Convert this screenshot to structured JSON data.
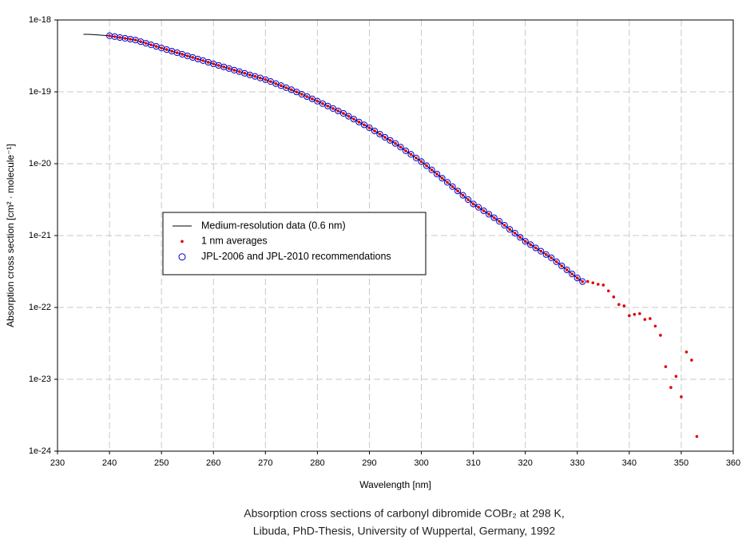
{
  "chart_data": {
    "type": "scatter",
    "ylabel": "Absorption cross section [cm² · molecule⁻¹]",
    "xlabel": "Wavelength [nm]",
    "caption": [
      "Absorption cross sections of carbonyl dibromide COBr₂ at 298 K,",
      "Libuda, PhD-Thesis, University of Wuppertal, Germany, 1992"
    ],
    "xlim": [
      230,
      360
    ],
    "xticks": [
      230,
      240,
      250,
      260,
      270,
      280,
      290,
      300,
      310,
      320,
      330,
      340,
      350,
      360
    ],
    "ylim": [
      1e-24,
      1e-18
    ],
    "yticks": [
      1e-24,
      1e-23,
      1e-22,
      1e-21,
      1e-20,
      1e-19,
      1e-18
    ],
    "log_y": true,
    "grid": true,
    "legend": "center-left",
    "series": [
      {
        "name": "Medium-resolution data (0.6 nm)",
        "marker": "line",
        "color": "#000000",
        "x": [
          235,
          236,
          237,
          238,
          239,
          240,
          241,
          242,
          243,
          244,
          245,
          246,
          247,
          248,
          249,
          250,
          251,
          252,
          253,
          254,
          255,
          256,
          257,
          258,
          259,
          260,
          261,
          262,
          263,
          264,
          265,
          266,
          267,
          268,
          269,
          270,
          271,
          272,
          273,
          274,
          275,
          276,
          277,
          278,
          279,
          280,
          281,
          282,
          283,
          284,
          285,
          286,
          287,
          288,
          289,
          290,
          291,
          292,
          293,
          294,
          295,
          296,
          297,
          298,
          299,
          300,
          301,
          302,
          303,
          304,
          305,
          306,
          307,
          308,
          309,
          310,
          311,
          312,
          313,
          314,
          315,
          316,
          317,
          318,
          319,
          320,
          321,
          322,
          323,
          324,
          325,
          326,
          327,
          328,
          329,
          330,
          331
        ],
        "values": [
          6.31e-19,
          6.31e-19,
          6.24e-19,
          6.17e-19,
          6.1e-19,
          6.03e-19,
          5.86e-19,
          5.7e-19,
          5.55e-19,
          5.4e-19,
          5.25e-19,
          4.99e-19,
          4.74e-19,
          4.51e-19,
          4.29e-19,
          4.07e-19,
          3.87e-19,
          3.68e-19,
          3.5e-19,
          3.33e-19,
          3.16e-19,
          3.01e-19,
          2.86e-19,
          2.72e-19,
          2.58e-19,
          2.45e-19,
          2.33e-19,
          2.22e-19,
          2.11e-19,
          2e-19,
          1.91e-19,
          1.81e-19,
          1.72e-19,
          1.64e-19,
          1.56e-19,
          1.48e-19,
          1.39e-19,
          1.3e-19,
          1.22e-19,
          1.14e-19,
          1.07e-19,
          9.95e-20,
          9.25e-20,
          8.59e-20,
          7.98e-20,
          7.41e-20,
          6.85e-20,
          6.34e-20,
          5.86e-20,
          5.42e-20,
          5.01e-20,
          4.57e-20,
          4.17e-20,
          3.8e-20,
          3.47e-20,
          3.16e-20,
          2.86e-20,
          2.58e-20,
          2.33e-20,
          2.11e-20,
          1.91e-20,
          1.7e-20,
          1.51e-20,
          1.35e-20,
          1.2e-20,
          1.07e-20,
          9.38e-21,
          8.2e-21,
          7.18e-21,
          6.28e-21,
          5.5e-21,
          4.79e-21,
          4.17e-21,
          3.63e-21,
          3.16e-21,
          2.75e-21,
          2.47e-21,
          2.21e-21,
          1.98e-21,
          1.77e-21,
          1.58e-21,
          1.39e-21,
          1.22e-21,
          1.08e-21,
          9.46e-22,
          8.32e-22,
          7.48e-22,
          6.73e-22,
          6.05e-22,
          5.45e-22,
          4.9e-22,
          4.31e-22,
          3.78e-22,
          3.33e-22,
          2.92e-22,
          2.57e-22,
          2.29e-22
        ]
      },
      {
        "name": "1 nm averages",
        "marker": "dot",
        "color": "#e00000",
        "x": [
          240,
          241,
          242,
          243,
          244,
          245,
          246,
          247,
          248,
          249,
          250,
          251,
          252,
          253,
          254,
          255,
          256,
          257,
          258,
          259,
          260,
          261,
          262,
          263,
          264,
          265,
          266,
          267,
          268,
          269,
          270,
          271,
          272,
          273,
          274,
          275,
          276,
          277,
          278,
          279,
          280,
          281,
          282,
          283,
          284,
          285,
          286,
          287,
          288,
          289,
          290,
          291,
          292,
          293,
          294,
          295,
          296,
          297,
          298,
          299,
          300,
          301,
          302,
          303,
          304,
          305,
          306,
          307,
          308,
          309,
          310,
          311,
          312,
          313,
          314,
          315,
          316,
          317,
          318,
          319,
          320,
          321,
          322,
          323,
          324,
          325,
          326,
          327,
          328,
          329,
          330,
          331,
          332,
          333,
          334,
          335,
          336,
          337,
          338,
          339,
          340,
          341,
          342,
          343,
          344,
          345,
          346,
          347,
          348,
          349,
          350,
          351,
          352,
          353
        ],
        "values": [
          6.03e-19,
          5.86e-19,
          5.7e-19,
          5.55e-19,
          5.4e-19,
          5.25e-19,
          4.99e-19,
          4.74e-19,
          4.51e-19,
          4.29e-19,
          4.07e-19,
          3.87e-19,
          3.68e-19,
          3.5e-19,
          3.33e-19,
          3.16e-19,
          3.01e-19,
          2.86e-19,
          2.72e-19,
          2.58e-19,
          2.45e-19,
          2.33e-19,
          2.22e-19,
          2.11e-19,
          2e-19,
          1.91e-19,
          1.81e-19,
          1.72e-19,
          1.64e-19,
          1.56e-19,
          1.48e-19,
          1.39e-19,
          1.3e-19,
          1.22e-19,
          1.14e-19,
          1.07e-19,
          9.95e-20,
          9.25e-20,
          8.59e-20,
          7.98e-20,
          7.41e-20,
          6.85e-20,
          6.34e-20,
          5.86e-20,
          5.42e-20,
          5.01e-20,
          4.57e-20,
          4.17e-20,
          3.8e-20,
          3.47e-20,
          3.16e-20,
          2.86e-20,
          2.58e-20,
          2.33e-20,
          2.11e-20,
          1.91e-20,
          1.7e-20,
          1.51e-20,
          1.35e-20,
          1.2e-20,
          1.07e-20,
          9.38e-21,
          8.2e-21,
          7.18e-21,
          6.28e-21,
          5.5e-21,
          4.79e-21,
          4.17e-21,
          3.63e-21,
          3.16e-21,
          2.75e-21,
          2.47e-21,
          2.21e-21,
          1.98e-21,
          1.77e-21,
          1.58e-21,
          1.39e-21,
          1.22e-21,
          1.08e-21,
          9.46e-22,
          8.32e-22,
          7.48e-22,
          6.73e-22,
          6.05e-22,
          5.45e-22,
          4.9e-22,
          4.31e-22,
          3.78e-22,
          3.33e-22,
          2.92e-22,
          2.57e-22,
          2.29e-22,
          2.3e-22,
          2.2e-22,
          2.1e-22,
          2.05e-22,
          1.7e-22,
          1.4e-22,
          1.1e-22,
          1.05e-22,
          7.7e-23,
          8e-23,
          8.2e-23,
          6.8e-23,
          7e-23,
          5.5e-23,
          4.1e-23,
          1.5e-23,
          7.7e-24,
          1.1e-23,
          5.7e-24,
          2.4e-23,
          1.85e-23,
          1.6e-24
        ]
      },
      {
        "name": "JPL-2006 and JPL-2010 recommendations",
        "marker": "circle",
        "color": "#0000cc",
        "x": [
          240,
          241,
          242,
          243,
          244,
          245,
          246,
          247,
          248,
          249,
          250,
          251,
          252,
          253,
          254,
          255,
          256,
          257,
          258,
          259,
          260,
          261,
          262,
          263,
          264,
          265,
          266,
          267,
          268,
          269,
          270,
          271,
          272,
          273,
          274,
          275,
          276,
          277,
          278,
          279,
          280,
          281,
          282,
          283,
          284,
          285,
          286,
          287,
          288,
          289,
          290,
          291,
          292,
          293,
          294,
          295,
          296,
          297,
          298,
          299,
          300,
          301,
          302,
          303,
          304,
          305,
          306,
          307,
          308,
          309,
          310,
          311,
          312,
          313,
          314,
          315,
          316,
          317,
          318,
          319,
          320,
          321,
          322,
          323,
          324,
          325,
          326,
          327,
          328,
          329,
          330,
          331
        ],
        "values": [
          6.03e-19,
          5.86e-19,
          5.7e-19,
          5.55e-19,
          5.4e-19,
          5.25e-19,
          4.99e-19,
          4.74e-19,
          4.51e-19,
          4.29e-19,
          4.07e-19,
          3.87e-19,
          3.68e-19,
          3.5e-19,
          3.33e-19,
          3.16e-19,
          3.01e-19,
          2.86e-19,
          2.72e-19,
          2.58e-19,
          2.45e-19,
          2.33e-19,
          2.22e-19,
          2.11e-19,
          2e-19,
          1.91e-19,
          1.81e-19,
          1.72e-19,
          1.64e-19,
          1.56e-19,
          1.48e-19,
          1.39e-19,
          1.3e-19,
          1.22e-19,
          1.14e-19,
          1.07e-19,
          9.95e-20,
          9.25e-20,
          8.59e-20,
          7.98e-20,
          7.41e-20,
          6.85e-20,
          6.34e-20,
          5.86e-20,
          5.42e-20,
          5.01e-20,
          4.57e-20,
          4.17e-20,
          3.8e-20,
          3.47e-20,
          3.16e-20,
          2.86e-20,
          2.58e-20,
          2.33e-20,
          2.11e-20,
          1.91e-20,
          1.7e-20,
          1.51e-20,
          1.35e-20,
          1.2e-20,
          1.07e-20,
          9.38e-21,
          8.2e-21,
          7.18e-21,
          6.28e-21,
          5.5e-21,
          4.79e-21,
          4.17e-21,
          3.63e-21,
          3.16e-21,
          2.75e-21,
          2.47e-21,
          2.21e-21,
          1.98e-21,
          1.77e-21,
          1.58e-21,
          1.39e-21,
          1.22e-21,
          1.08e-21,
          9.46e-22,
          8.32e-22,
          7.48e-22,
          6.73e-22,
          6.05e-22,
          5.45e-22,
          4.9e-22,
          4.31e-22,
          3.78e-22,
          3.33e-22,
          2.92e-22,
          2.57e-22,
          2.29e-22
        ]
      }
    ]
  }
}
